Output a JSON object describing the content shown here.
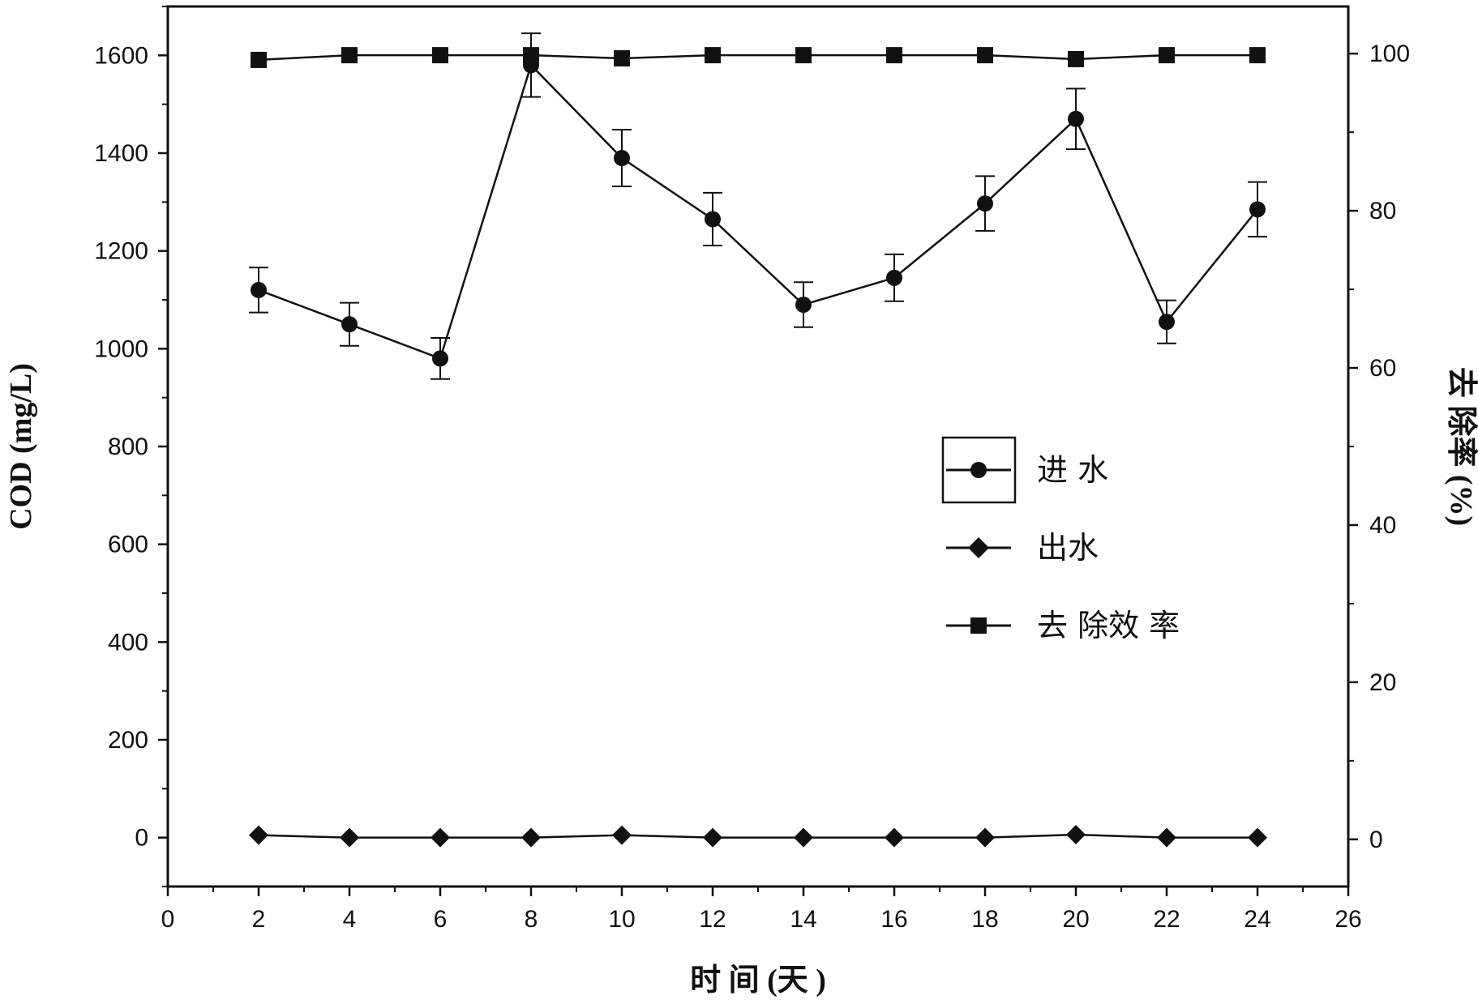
{
  "chart_data": {
    "type": "line",
    "title": "",
    "xlabel": "时 间 (天 )",
    "ylabel_left": "COD (mg/L)",
    "ylabel_right": "去 除率 (%)",
    "xlim": [
      0,
      26
    ],
    "x_ticks": [
      0,
      2,
      4,
      6,
      8,
      10,
      12,
      14,
      16,
      18,
      20,
      22,
      24,
      26
    ],
    "ylim_left": [
      -100,
      1700
    ],
    "y_ticks_left": [
      0,
      200,
      400,
      600,
      800,
      1000,
      1200,
      1400,
      1600
    ],
    "ylim_right": [
      -6,
      106
    ],
    "y_ticks_right": [
      0,
      20,
      40,
      60,
      80,
      100
    ],
    "grid": false,
    "legend_position": "center-right",
    "x": [
      2,
      4,
      6,
      8,
      10,
      12,
      14,
      16,
      18,
      20,
      22,
      24
    ],
    "series": [
      {
        "name": "进 水",
        "axis": "left",
        "marker": "circle",
        "values": [
          1120,
          1050,
          980,
          1580,
          1390,
          1265,
          1090,
          1145,
          1297,
          1470,
          1055,
          1285
        ],
        "errors": [
          46,
          44,
          42,
          65,
          58,
          54,
          46,
          48,
          56,
          62,
          44,
          56
        ]
      },
      {
        "name": "出水",
        "axis": "left",
        "marker": "diamond",
        "values": [
          5,
          0,
          0,
          0,
          5,
          0,
          0,
          0,
          0,
          6,
          0,
          0
        ]
      },
      {
        "name": "去 除效 率",
        "axis": "right",
        "marker": "square",
        "values": [
          99.2,
          99.8,
          99.8,
          99.8,
          99.4,
          99.8,
          99.8,
          99.8,
          99.8,
          99.3,
          99.8,
          99.8
        ]
      }
    ],
    "colors": {
      "line": "#111111",
      "axis": "#111111"
    }
  }
}
